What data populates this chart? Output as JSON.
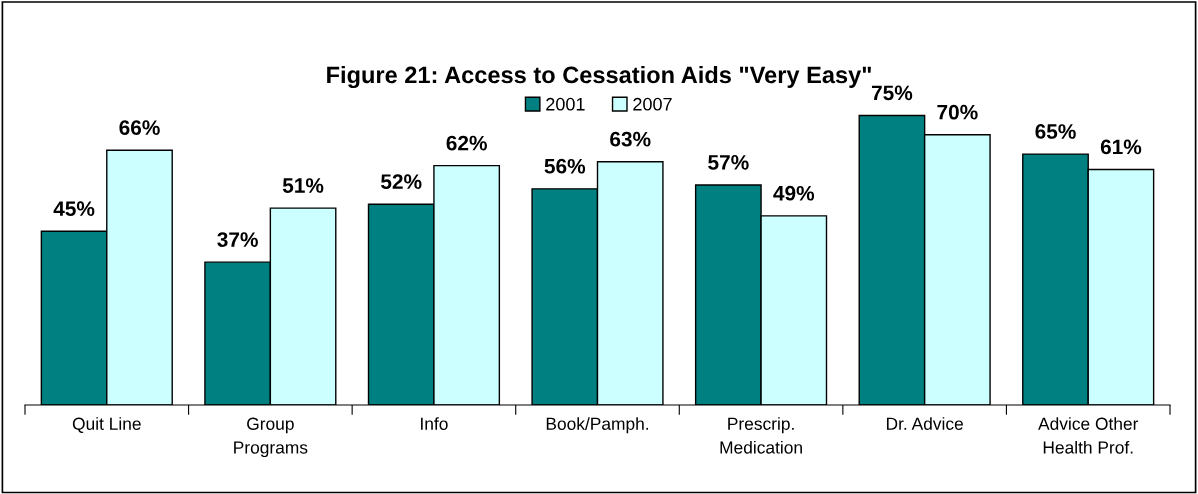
{
  "chart_data": {
    "type": "bar",
    "title": "Figure 21: Access to Cessation Aids \"Very Easy\"",
    "categories": [
      "Quit Line",
      "Group\nPrograms",
      "Info",
      "Book/Pamph.",
      "Prescrip.\nMedication",
      "Dr. Advice",
      "Advice Other\nHealth Prof."
    ],
    "series": [
      {
        "name": "2001",
        "color": "#008080",
        "values": [
          45,
          37,
          52,
          56,
          57,
          75,
          65
        ],
        "value_labels": [
          "45%",
          "37%",
          "52%",
          "56%",
          "57%",
          "75%",
          "65%"
        ]
      },
      {
        "name": "2007",
        "color": "#ccffff",
        "values": [
          66,
          51,
          62,
          63,
          49,
          70,
          61
        ],
        "value_labels": [
          "66%",
          "51%",
          "62%",
          "63%",
          "49%",
          "70%",
          "61%"
        ]
      }
    ],
    "legend": "top",
    "grid": false
  }
}
